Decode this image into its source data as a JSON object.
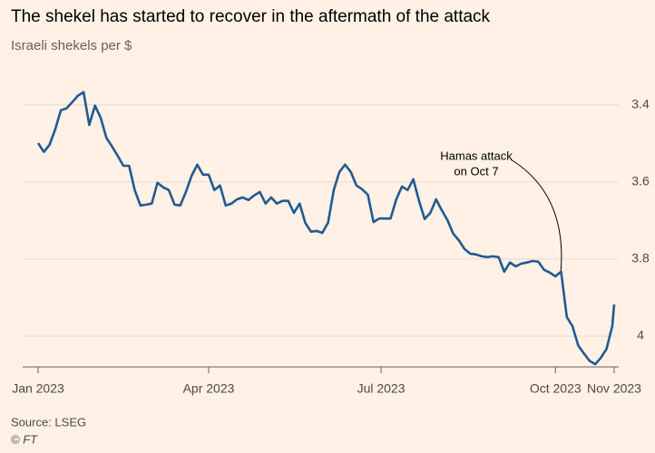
{
  "chart_data": {
    "type": "line",
    "title": "The shekel has started to recover in the aftermath of the attack",
    "subtitle": "Israeli shekels per $",
    "source": "Source: LSEG",
    "credit": "© FT",
    "annotation": [
      "Hamas attack",
      "on Oct 7"
    ],
    "y_inverted": true,
    "grid": true,
    "ylim": [
      3.33,
      4.08
    ],
    "yticks": [
      3.4,
      3.6,
      3.8,
      4.0
    ],
    "xlim": [
      0,
      304
    ],
    "xticks": [
      {
        "value": 0,
        "label": "Jan 2023"
      },
      {
        "value": 90,
        "label": "Apr 2023"
      },
      {
        "value": 181,
        "label": "Jul 2023"
      },
      {
        "value": 273,
        "label": "Oct 2023"
      },
      {
        "value": 304,
        "label": "Nov 2023"
      }
    ],
    "x": [
      0,
      3,
      6,
      9,
      12,
      15,
      18,
      21,
      24,
      27,
      30,
      33,
      36,
      39,
      42,
      45,
      48,
      51,
      54,
      57,
      60,
      63,
      66,
      69,
      72,
      75,
      78,
      81,
      84,
      87,
      90,
      93,
      96,
      99,
      102,
      105,
      108,
      111,
      114,
      117,
      120,
      123,
      126,
      129,
      132,
      135,
      138,
      141,
      144,
      147,
      150,
      153,
      156,
      159,
      162,
      165,
      168,
      171,
      174,
      177,
      180,
      183,
      186,
      189,
      192,
      195,
      198,
      201,
      204,
      207,
      210,
      213,
      216,
      219,
      222,
      225,
      228,
      231,
      234,
      237,
      240,
      243,
      246,
      249,
      252,
      255,
      258,
      261,
      264,
      267,
      270,
      273,
      276,
      279,
      282,
      285,
      288,
      291,
      294,
      297,
      300,
      303,
      304
    ],
    "series": [
      {
        "color": "#215a91",
        "values": [
          3.499,
          3.522,
          3.504,
          3.464,
          3.414,
          3.409,
          3.393,
          3.376,
          3.367,
          3.452,
          3.402,
          3.433,
          3.485,
          3.508,
          3.532,
          3.558,
          3.558,
          3.621,
          3.661,
          3.659,
          3.656,
          3.602,
          3.614,
          3.621,
          3.659,
          3.661,
          3.626,
          3.584,
          3.555,
          3.581,
          3.581,
          3.621,
          3.609,
          3.661,
          3.656,
          3.645,
          3.64,
          3.647,
          3.635,
          3.626,
          3.656,
          3.64,
          3.656,
          3.649,
          3.649,
          3.68,
          3.656,
          3.706,
          3.729,
          3.727,
          3.732,
          3.706,
          3.621,
          3.574,
          3.555,
          3.574,
          3.609,
          3.619,
          3.633,
          3.704,
          3.695,
          3.695,
          3.695,
          3.645,
          3.612,
          3.621,
          3.593,
          3.649,
          3.696,
          3.68,
          3.645,
          3.673,
          3.699,
          3.734,
          3.751,
          3.774,
          3.786,
          3.788,
          3.793,
          3.795,
          3.793,
          3.795,
          3.833,
          3.809,
          3.819,
          3.812,
          3.809,
          3.805,
          3.807,
          3.828,
          3.835,
          3.845,
          3.833,
          3.951,
          3.974,
          4.024,
          4.045,
          4.064,
          4.073,
          4.056,
          4.033,
          3.974,
          3.918
        ]
      }
    ]
  }
}
